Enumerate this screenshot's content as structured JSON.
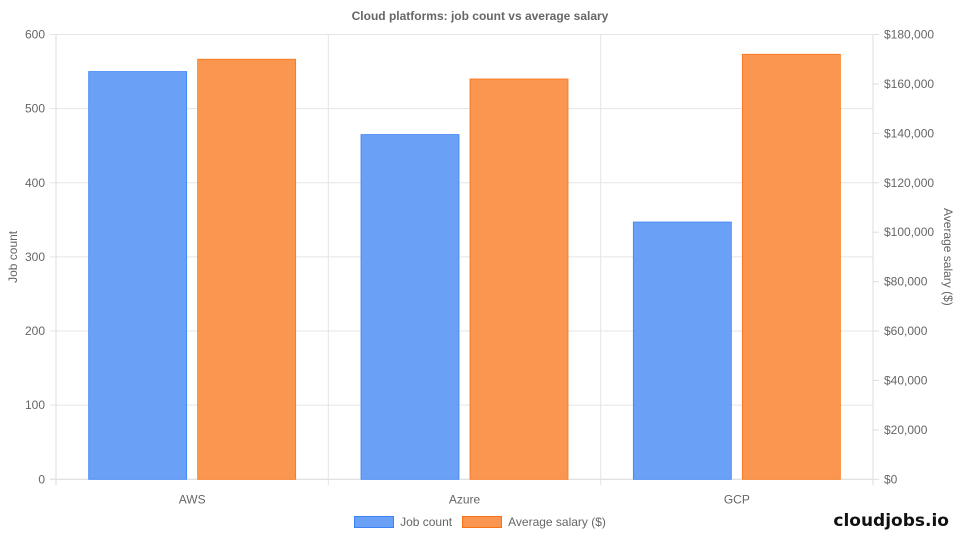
{
  "chart_data": {
    "type": "bar",
    "title": "Cloud platforms: job count vs average salary",
    "categories": [
      "AWS",
      "Azure",
      "GCP"
    ],
    "series": [
      {
        "name": "Job count",
        "axis": "left",
        "values": [
          550,
          465,
          347
        ],
        "color": "#6aa1f7",
        "border": "#3b82f6"
      },
      {
        "name": "Average salary ($)",
        "axis": "right",
        "values": [
          170000,
          162000,
          172000
        ],
        "color": "#fb9650",
        "border": "#f97316"
      }
    ],
    "xlabel": "",
    "ylabel": "Job count",
    "ylabel_right": "Average salary ($)",
    "ylim": [
      0,
      600
    ],
    "ylim_right": [
      0,
      180000
    ],
    "yticks": [
      0,
      100,
      200,
      300,
      400,
      500,
      600
    ],
    "yticks_right": [
      "$0",
      "$20,000",
      "$40,000",
      "$60,000",
      "$80,000",
      "$100,000",
      "$120,000",
      "$140,000",
      "$160,000",
      "$180,000"
    ],
    "grid": true,
    "legend_position": "bottom"
  },
  "watermark": "cloudjobs.io"
}
